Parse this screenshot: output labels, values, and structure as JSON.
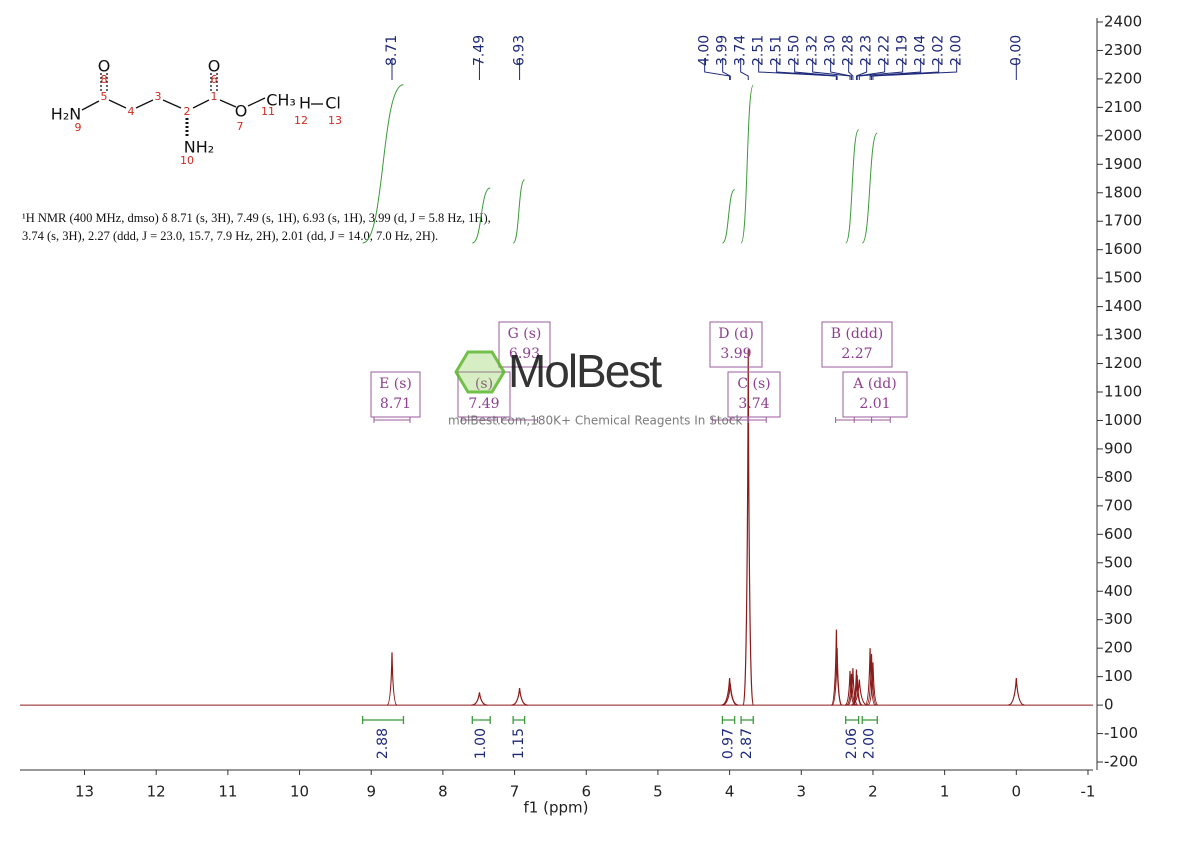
{
  "chart_data": {
    "type": "nmr",
    "x_label": "f1 (ppm)",
    "color": "#8b1a1a",
    "x": [
      8.71,
      7.49,
      6.93,
      4.0,
      3.99,
      3.74,
      2.51,
      2.5,
      2.32,
      2.3,
      2.28,
      2.23,
      2.22,
      2.19,
      2.04,
      2.02,
      2.0,
      0.0
    ],
    "values": [
      185,
      45,
      60,
      95,
      75,
      1250,
      265,
      200,
      120,
      110,
      130,
      125,
      105,
      90,
      200,
      180,
      150,
      95
    ],
    "xlim": [
      13.9,
      -1.07
    ],
    "xticks": [
      13,
      12,
      11,
      10,
      9,
      8,
      7,
      6,
      5,
      4,
      3,
      2,
      1,
      0,
      -1
    ],
    "ylim": [
      -228,
      2414
    ],
    "yticks": [
      -200,
      -100,
      0,
      100,
      200,
      300,
      400,
      500,
      600,
      700,
      800,
      900,
      1000,
      1100,
      1200,
      1300,
      1400,
      1500,
      1600,
      1700,
      1800,
      1900,
      2000,
      2100,
      2200,
      2300,
      2400
    ],
    "peak_picks": [
      8.71,
      7.49,
      6.93,
      {
        "value": 4.0,
        "label": "4.00"
      },
      3.99,
      3.74,
      2.51,
      2.51,
      {
        "value": 2.5,
        "label": "2.50"
      },
      2.32,
      {
        "value": 2.3,
        "label": "2.30"
      },
      2.28,
      2.23,
      2.22,
      2.19,
      2.04,
      2.02,
      {
        "value": 2.0,
        "label": "2.00"
      },
      {
        "value": 0.0,
        "label": "0.00"
      }
    ],
    "integrals": {
      "values": [
        2.88,
        1.0,
        1.15,
        0.97,
        2.87,
        2.06,
        2.0
      ],
      "value_labels": [
        "2.88",
        "1.00",
        "1.15",
        "0.97",
        "2.87",
        "2.06",
        "2.00"
      ],
      "ranges": [
        [
          9.12,
          8.55
        ],
        [
          7.59,
          7.34
        ],
        [
          7.02,
          6.86
        ],
        [
          4.1,
          3.93
        ],
        [
          3.84,
          3.67
        ],
        [
          2.38,
          2.2
        ],
        [
          2.15,
          1.94
        ]
      ],
      "color": "#3a9a3a"
    },
    "multiplets": [
      {
        "label": "E (s)",
        "shift": 8.71
      },
      {
        "label": "G (s)",
        "shift": 6.93
      },
      {
        "label": "(s)",
        "shift": 7.49
      },
      {
        "label": "D (d)",
        "shift": 3.99
      },
      {
        "label": "C (s)",
        "shift": 3.74
      },
      {
        "label": "B (ddd)",
        "shift": 2.27
      },
      {
        "label": "A (dd)",
        "shift": 2.01
      }
    ],
    "description": [
      "¹H NMR (400 MHz, dmso) δ 8.71 (s, 3H), 7.49 (s, 1H), 6.93 (s, 1H), 3.99 (d, J = 5.8 Hz, 1H),",
      "3.74 (s, 3H), 2.27 (ddd, J = 23.0, 15.7, 7.9 Hz, 2H), 2.01 (dd, J = 14.0, 7.0 Hz, 2H)."
    ]
  },
  "structure": {
    "atoms": [
      "O",
      "H₂N",
      "O",
      "O",
      "CH₃",
      "H",
      "Cl",
      "NH₂"
    ],
    "locants": [
      "1",
      "2",
      "3",
      "4",
      "5",
      "6",
      "7",
      "8",
      "9",
      "10",
      "11",
      "12",
      "13"
    ]
  },
  "watermark": {
    "brand": "MolBest",
    "tagline": "molBest.com,180K+ Chemical Reagents In Stock"
  }
}
